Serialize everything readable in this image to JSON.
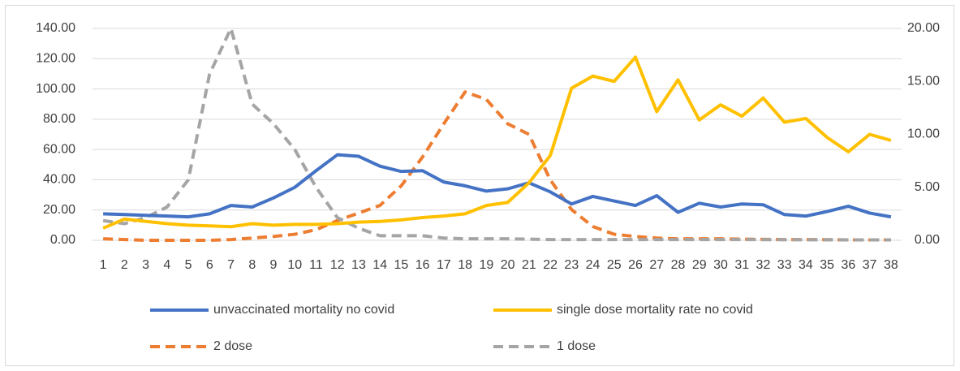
{
  "chart_data": {
    "type": "line",
    "categories": [
      1,
      2,
      3,
      4,
      5,
      6,
      7,
      8,
      9,
      10,
      11,
      12,
      13,
      14,
      15,
      16,
      17,
      18,
      19,
      20,
      21,
      22,
      23,
      24,
      25,
      26,
      27,
      28,
      29,
      30,
      31,
      32,
      33,
      34,
      35,
      36,
      37,
      38
    ],
    "ylim": [
      0,
      140
    ],
    "yticks": [
      {
        "value": 0,
        "label": "0.00"
      },
      {
        "value": 20,
        "label": "20.00"
      },
      {
        "value": 40,
        "label": "40.00"
      },
      {
        "value": 60,
        "label": "60.00"
      },
      {
        "value": 80,
        "label": "80.00"
      },
      {
        "value": 100,
        "label": "100.00"
      },
      {
        "value": 120,
        "label": "120.00"
      },
      {
        "value": 140,
        "label": "140.00"
      }
    ],
    "y2lim": [
      0,
      20
    ],
    "y2ticks": [
      {
        "value": 0,
        "label": "0.00"
      },
      {
        "value": 5,
        "label": "5.00"
      },
      {
        "value": 10,
        "label": "10.00"
      },
      {
        "value": 15,
        "label": "15.00"
      },
      {
        "value": 20,
        "label": "20.00"
      }
    ],
    "grid": true,
    "legend": "bottom",
    "series": [
      {
        "name": "unvaccinated mortality no covid",
        "color": "#4472c4",
        "line_style": "solid",
        "values": [
          17.5,
          17,
          16.5,
          16,
          15.5,
          17.5,
          23,
          22,
          28,
          35,
          46,
          56.5,
          55.5,
          49,
          45.5,
          46,
          38.5,
          36,
          32.5,
          34,
          38,
          32,
          24,
          29,
          26,
          23,
          29.5,
          18.5,
          24.5,
          22,
          24,
          23.5,
          17,
          16,
          19,
          22.5,
          18,
          15.5
        ]
      },
      {
        "name": "single dose mortality rate no covid",
        "color": "#ffc000",
        "line_style": "solid",
        "values": [
          8,
          14,
          12.5,
          11,
          10,
          9.5,
          9,
          11,
          10,
          10.5,
          10.5,
          11,
          12,
          12.5,
          13.5,
          15,
          16,
          17.5,
          23,
          25,
          38,
          56,
          100.5,
          108.5,
          105,
          121,
          85,
          106,
          79.5,
          89.5,
          82,
          94,
          78,
          80.5,
          68,
          58.5,
          70,
          66
        ]
      },
      {
        "name": "2 dose",
        "color": "#ed7d31",
        "line_style": "dashed",
        "axis": "y2",
        "values": [
          0.14,
          0.07,
          0,
          0,
          0,
          0,
          0.07,
          0.21,
          0.36,
          0.57,
          1,
          1.86,
          2.57,
          3.29,
          5.14,
          7.86,
          11,
          14,
          13.3,
          11,
          10,
          5.7,
          2.9,
          1.3,
          0.57,
          0.36,
          0.21,
          0.14,
          0.14,
          0.14,
          0.11,
          0.09,
          0.07,
          0.07,
          0.06,
          0.04,
          0.04,
          0.04
        ]
      },
      {
        "name": "1 dose",
        "color": "#a5a5a5",
        "line_style": "dashed",
        "axis": "y2",
        "values": [
          1.86,
          1.57,
          2.14,
          3.14,
          5.71,
          15.7,
          20,
          12.86,
          11,
          8.57,
          5,
          2.14,
          1.14,
          0.43,
          0.43,
          0.43,
          0.21,
          0.14,
          0.14,
          0.14,
          0.11,
          0.07,
          0.07,
          0.07,
          0.07,
          0.07,
          0.07,
          0.07,
          0.07,
          0.07,
          0.07,
          0.06,
          0.06,
          0.05,
          0.05,
          0.04,
          0.04,
          0.04
        ]
      }
    ]
  }
}
